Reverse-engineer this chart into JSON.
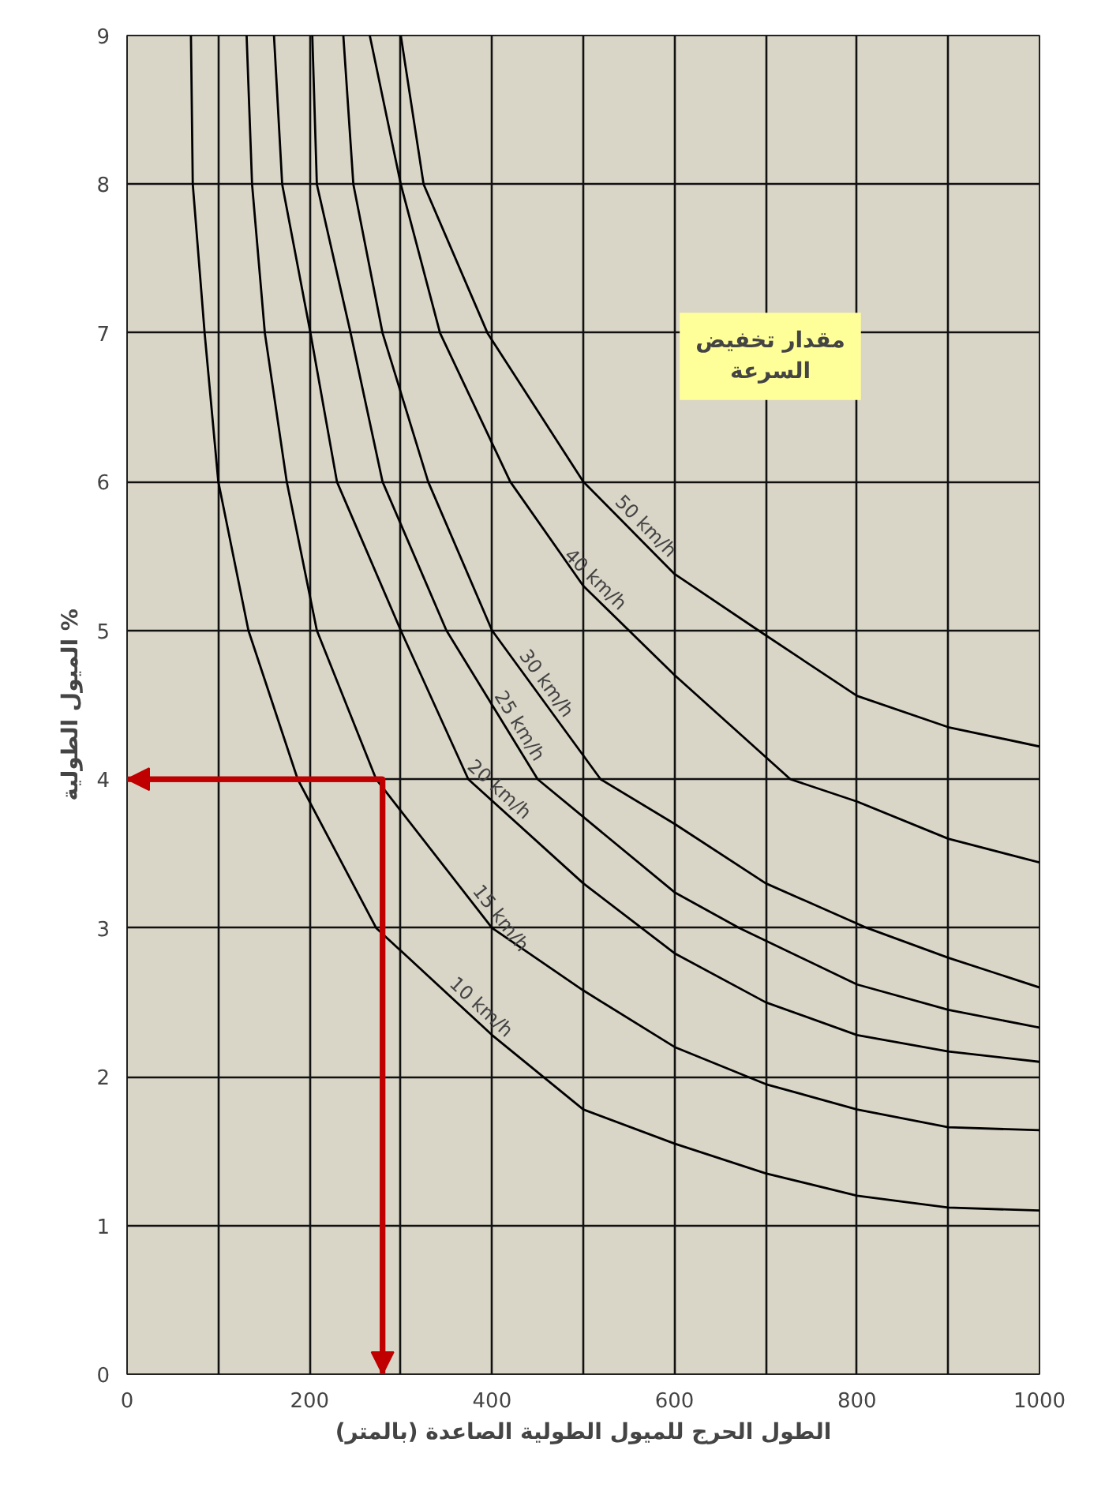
{
  "chart_data": {
    "type": "line",
    "xlabel": "الطول الحرج للميول الطولية الصاعدة (بالمتر)",
    "ylabel": "الميول الطولية %",
    "annotations": [
      "مقدار تخفيض\nالسرعة"
    ],
    "xlim": [
      0,
      1000
    ],
    "ylim": [
      0,
      9
    ],
    "xticks": [
      0,
      {
        "value": 100,
        "label": null
      },
      200,
      {
        "value": 300,
        "label": null
      },
      400,
      {
        "value": 500,
        "label": null
      },
      600,
      {
        "value": 700,
        "label": null
      },
      800,
      {
        "value": 900,
        "label": null
      },
      1000
    ],
    "yticks": [
      0,
      1,
      2,
      3,
      4,
      5,
      6,
      7,
      8,
      9
    ],
    "grid": true,
    "marker": "none",
    "line_style": "solid",
    "series": [
      {
        "name": "10 km/h",
        "color": "#000000",
        "x": [
          70,
          72,
          85,
          100,
          133,
          187,
          273,
          400,
          500,
          600,
          700,
          800,
          900,
          1000
        ],
        "values": [
          9,
          8,
          7,
          6,
          5,
          4,
          3,
          2.28,
          1.78,
          1.55,
          1.35,
          1.2,
          1.12,
          1.1
        ]
      },
      {
        "name": "15 km/h",
        "color": "#000000",
        "x": [
          131,
          137,
          151,
          175,
          208,
          273,
          400,
          500,
          600,
          700,
          800,
          900,
          1000
        ],
        "values": [
          9,
          8,
          7,
          6,
          5,
          4,
          3,
          2.58,
          2.2,
          1.95,
          1.78,
          1.66,
          1.64
        ]
      },
      {
        "name": "20 km/h",
        "color": "#000000",
        "x": [
          161,
          170,
          201,
          230,
          300,
          374,
          500,
          600,
          700,
          800,
          900,
          1000
        ],
        "values": [
          9,
          8,
          7,
          6,
          5,
          4,
          3.3,
          2.83,
          2.5,
          2.28,
          2.17,
          2.1
        ]
      },
      {
        "name": "25 km/h",
        "color": "#000000",
        "x": [
          203,
          208,
          245,
          280,
          350,
          450,
          600,
          671,
          800,
          900,
          1000
        ],
        "values": [
          9,
          8,
          7,
          6,
          5,
          4,
          3.24,
          3,
          2.62,
          2.45,
          2.33
        ]
      },
      {
        "name": "30 km/h",
        "color": "#000000",
        "x": [
          237,
          248,
          280,
          330,
          400,
          519,
          600,
          700,
          811,
          900,
          1000
        ],
        "values": [
          9,
          8,
          7,
          6,
          5,
          4,
          3.7,
          3.3,
          3,
          2.8,
          2.6
        ]
      },
      {
        "name": "40 km/h",
        "color": "#000000",
        "x": [
          266,
          300,
          343,
          420,
          500,
          600,
          727,
          800,
          900,
          1000
        ],
        "values": [
          9,
          8,
          7,
          6,
          5.3,
          4.7,
          4,
          3.85,
          3.6,
          3.44
        ]
      },
      {
        "name": "50 km/h",
        "color": "#000000",
        "x": [
          300,
          325,
          395,
          500,
          600,
          692,
          800,
          900,
          1000
        ],
        "values": [
          9,
          8,
          7,
          6,
          5.38,
          5,
          4.56,
          4.35,
          4.22
        ]
      },
      {
        "color": "#c00000",
        "x": [
          0,
          280,
          280
        ],
        "values": [
          4,
          4,
          0
        ]
      }
    ]
  }
}
